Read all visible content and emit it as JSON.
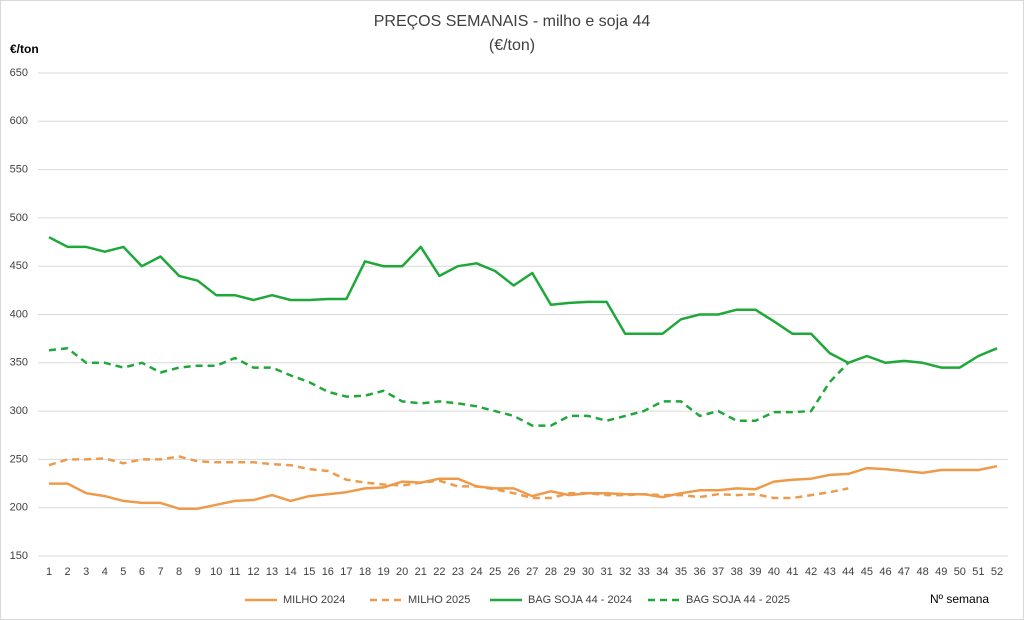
{
  "chart_data": {
    "type": "line",
    "title": "PREÇOS SEMANAIS - milho e soja 44",
    "subtitle": "(€/ton)",
    "y_label": "€/ton",
    "x_label": "Nº semana",
    "categories": [
      1,
      2,
      3,
      4,
      5,
      6,
      7,
      8,
      9,
      10,
      11,
      12,
      13,
      14,
      15,
      16,
      17,
      18,
      19,
      20,
      21,
      22,
      23,
      24,
      25,
      26,
      27,
      28,
      29,
      30,
      31,
      32,
      33,
      34,
      35,
      36,
      37,
      38,
      39,
      40,
      41,
      42,
      43,
      44,
      45,
      46,
      47,
      48,
      49,
      50,
      51,
      52
    ],
    "ylim": [
      150,
      650
    ],
    "yticks": [
      150,
      200,
      250,
      300,
      350,
      400,
      450,
      500,
      550,
      600,
      650
    ],
    "grid": true,
    "legend": "bottom",
    "series": [
      {
        "name": "MILHO 2024",
        "color": "#ed9b4b",
        "style": "solid",
        "values": [
          225,
          225,
          215,
          212,
          207,
          205,
          205,
          199,
          199,
          203,
          207,
          208,
          213,
          207,
          212,
          214,
          216,
          220,
          221,
          227,
          226,
          230,
          230,
          222,
          220,
          220,
          212,
          217,
          213,
          215,
          215,
          214,
          214,
          211,
          215,
          218,
          218,
          220,
          219,
          227,
          229,
          230,
          234,
          235,
          241,
          240,
          238,
          236,
          239,
          239,
          239,
          243
        ]
      },
      {
        "name": "MILHO 2025",
        "color": "#ed9b4b",
        "style": "dashed",
        "values": [
          244,
          250,
          250,
          251,
          246,
          250,
          250,
          253,
          248,
          247,
          247,
          247,
          245,
          244,
          240,
          238,
          229,
          226,
          224,
          223,
          226,
          228,
          222,
          222,
          219,
          215,
          210,
          210,
          215,
          215,
          213,
          213,
          214,
          213,
          213,
          211,
          214,
          213,
          214,
          210,
          210,
          213,
          216,
          220,
          null,
          null,
          null,
          null,
          null,
          null,
          null,
          null
        ]
      },
      {
        "name": "BAG SOJA 44 - 2024",
        "color": "#1fa83a",
        "style": "solid",
        "values": [
          480,
          470,
          470,
          465,
          470,
          450,
          460,
          440,
          435,
          420,
          420,
          415,
          420,
          415,
          415,
          416,
          416,
          455,
          450,
          450,
          470,
          440,
          450,
          453,
          445,
          430,
          443,
          410,
          412,
          413,
          413,
          380,
          380,
          380,
          395,
          400,
          400,
          405,
          405,
          393,
          380,
          380,
          360,
          350,
          357,
          350,
          352,
          350,
          345,
          345,
          357,
          365
        ]
      },
      {
        "name": "BAG SOJA 44 - 2025",
        "color": "#1fa83a",
        "style": "dashed",
        "values": [
          363,
          365,
          350,
          350,
          345,
          350,
          340,
          345,
          347,
          347,
          355,
          345,
          345,
          337,
          330,
          320,
          315,
          316,
          321,
          310,
          308,
          310,
          308,
          305,
          300,
          295,
          285,
          285,
          295,
          295,
          290,
          295,
          300,
          310,
          310,
          295,
          300,
          290,
          290,
          299,
          299,
          300,
          330,
          350,
          null,
          null,
          null,
          null,
          null,
          null,
          null,
          null
        ]
      }
    ]
  }
}
